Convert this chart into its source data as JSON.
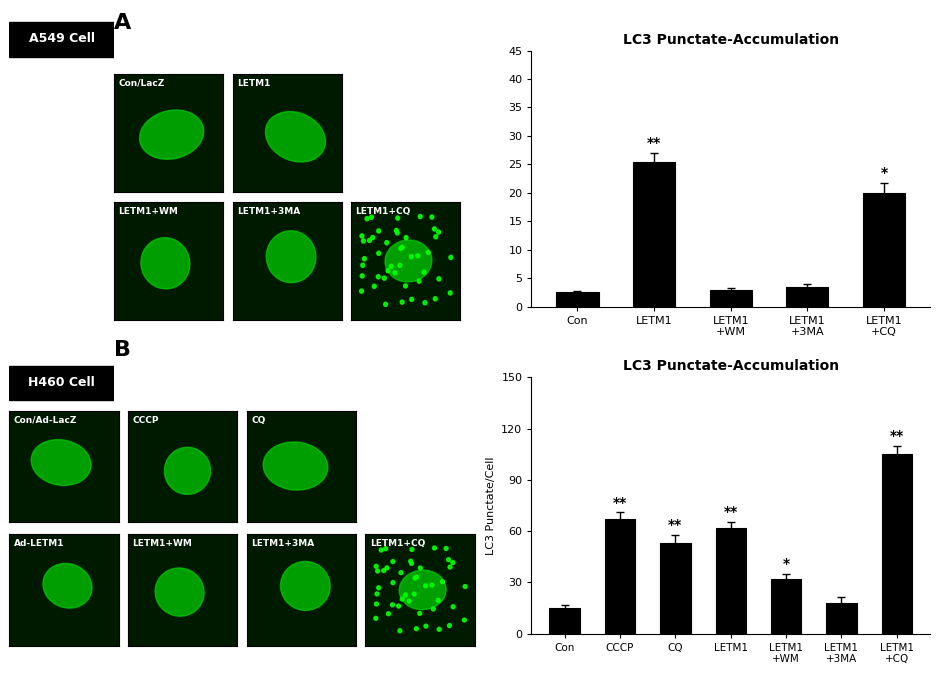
{
  "panel_A_title": "LC3 Punctate-Accumulation",
  "panel_A_categories": [
    "Con",
    "LETM1",
    "LETM1\n+WM",
    "LETM1\n+3MA",
    "LETM1\n+CQ"
  ],
  "panel_A_values": [
    2.5,
    25.5,
    3.0,
    3.5,
    20.0
  ],
  "panel_A_errors": [
    0.3,
    1.5,
    0.3,
    0.4,
    1.8
  ],
  "panel_A_ylim": [
    0,
    45
  ],
  "panel_A_yticks": [
    0,
    5,
    10,
    15,
    20,
    25,
    30,
    35,
    40,
    45
  ],
  "panel_A_significance": [
    "",
    "**",
    "",
    "",
    "*"
  ],
  "panel_A_ylabel": "",
  "panel_B_title": "LC3 Punctate-Accumulation",
  "panel_B_categories": [
    "Con",
    "CCCP",
    "CQ",
    "LETM1",
    "LETM1\n+WM",
    "LETM1\n+3MA",
    "LETM1\n+CQ"
  ],
  "panel_B_values": [
    15.0,
    67.0,
    53.0,
    62.0,
    32.0,
    18.0,
    105.0
  ],
  "panel_B_errors": [
    2.0,
    4.0,
    5.0,
    3.5,
    3.0,
    3.5,
    5.0
  ],
  "panel_B_ylim": [
    0,
    150
  ],
  "panel_B_yticks": [
    0,
    30,
    60,
    90,
    120,
    150
  ],
  "panel_B_significance": [
    "",
    "**",
    "**",
    "**",
    "*",
    "",
    "**"
  ],
  "panel_B_ylabel": "LC3 Punctate/Cell",
  "bar_color": "#000000",
  "background_color": "#ffffff",
  "label_A": "A",
  "label_B": "B",
  "cell_label_A": "A549 Cell",
  "cell_label_B": "H460 Cell"
}
